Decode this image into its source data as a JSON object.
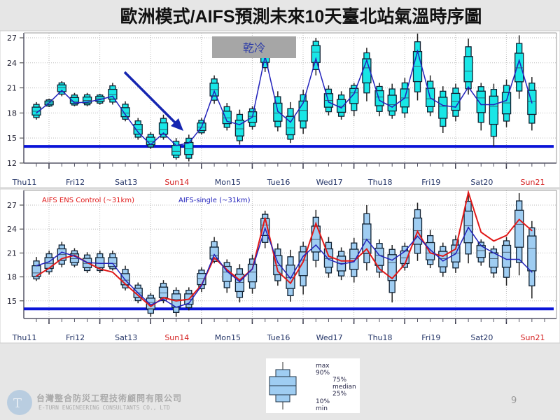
{
  "title": "歐洲模式/AIFS預測未來10天臺北站氣溫時序圖",
  "annotation_label": "乾冷",
  "page_number": "9",
  "logo": {
    "zh": "台灣整合防災工程技術顧問有限公司",
    "en": "E-TURN ENGINEERING CONSULTANTS CO., LTD"
  },
  "legend_box": {
    "labels": [
      "max",
      "90%",
      "75%",
      "median",
      "25%",
      "10%",
      "min"
    ]
  },
  "colors": {
    "top_box": "#19e6e6",
    "bottom_box": "#9fcdf2",
    "threshold": "#0a14d8",
    "ens_control": "#e01818",
    "aifs_single": "#2222bb",
    "sunday_label": "#d42020"
  },
  "chart_data": [
    {
      "type": "boxplot",
      "threshold_line": 14,
      "ylim": [
        12,
        27.5
      ],
      "yticks": [
        12,
        15,
        18,
        21,
        24,
        27
      ],
      "grid": true,
      "days": [
        "Thu11",
        "Fri12",
        "Sat13",
        "Sun14",
        "Mon15",
        "Tue16",
        "Wed17",
        "Thu18",
        "Fri19",
        "Sat20",
        "Sun21"
      ],
      "median": [
        18.2,
        19.2,
        21.0,
        19.4,
        19.5,
        19.7,
        20.2,
        18.0,
        16.0,
        14.6,
        16.0,
        13.4,
        13.7,
        16.3,
        20.8,
        17.4,
        16.1,
        17.6,
        25.0,
        18.0,
        16.2,
        18.3,
        25.3,
        19.5,
        18.8,
        20.4,
        23.4,
        19.9,
        19.0,
        19.8,
        23.6,
        19.7,
        18.8,
        19.4,
        23.0,
        19.8,
        18.8,
        19.2,
        23.4,
        19.4
      ],
      "min": [
        17.2,
        18.7,
        20.0,
        18.8,
        18.8,
        19.0,
        19.0,
        17.0,
        14.8,
        13.7,
        14.8,
        12.4,
        12.2,
        15.4,
        19.1,
        15.9,
        14.2,
        16.0,
        22.9,
        15.8,
        14.4,
        15.5,
        22.5,
        17.7,
        17.2,
        17.6,
        19.4,
        17.6,
        17.3,
        17.4,
        19.5,
        17.6,
        15.6,
        17.0,
        20.2,
        15.9,
        14.0,
        16.3,
        19.7,
        15.9
      ],
      "max": [
        19.3,
        19.7,
        21.8,
        20.4,
        20.4,
        20.3,
        21.6,
        19.4,
        17.4,
        15.7,
        17.8,
        15.0,
        15.4,
        17.4,
        22.5,
        19.2,
        18.4,
        18.8,
        26.5,
        20.6,
        19.3,
        20.8,
        27.0,
        21.3,
        20.6,
        21.6,
        25.8,
        21.6,
        21.5,
        22.2,
        27.5,
        22.5,
        21.2,
        21.5,
        26.9,
        21.6,
        21.5,
        22.0,
        27.3,
        22.3
      ],
      "series": [
        {
          "values": [
            18.0,
            19.2,
            20.7,
            19.2,
            19.3,
            19.6,
            20.0,
            17.8,
            15.7,
            14.2,
            15.6,
            14.1,
            14.4,
            16.3,
            20.6,
            17.0,
            16.6,
            17.5,
            24.8,
            18.2,
            16.9,
            19.2,
            24.5,
            19.3,
            18.6,
            20.3,
            24.3,
            19.5,
            18.7,
            19.8,
            25.4,
            19.8,
            18.9,
            18.7,
            21.1,
            19.0,
            19.0,
            19.5,
            24.3,
            19.2
          ]
        }
      ]
    },
    {
      "type": "boxplot",
      "threshold_line": 14,
      "ylim": [
        13,
        28.5
      ],
      "yticks": [
        15,
        18,
        21,
        24,
        27
      ],
      "grid": true,
      "days": [
        "Thu11",
        "Fri12",
        "Sat13",
        "Sun14",
        "Mon15",
        "Tue16",
        "Wed17",
        "Thu18",
        "Fri19",
        "Sat20",
        "Sun21"
      ],
      "median": [
        18.5,
        19.7,
        20.8,
        20.3,
        19.7,
        19.7,
        19.7,
        17.6,
        16.0,
        14.8,
        16.0,
        15.2,
        15.2,
        17.8,
        20.7,
        18.6,
        17.3,
        18.6,
        24.5,
        19.4,
        17.9,
        20.1,
        22.7,
        20.3,
        19.7,
        20.3,
        22.7,
        20.7,
        19.8,
        20.4,
        23.8,
        21.0,
        20.3,
        21.0,
        24.4,
        21.3,
        20.3,
        21.1,
        24.6,
        21.6
      ],
      "min": [
        17.5,
        18.3,
        19.2,
        19.2,
        18.5,
        18.5,
        18.8,
        16.3,
        14.7,
        13.0,
        14.7,
        13.0,
        13.8,
        16.1,
        19.7,
        16.0,
        14.8,
        15.9,
        21.6,
        16.9,
        14.9,
        15.8,
        19.2,
        17.9,
        17.6,
        17.3,
        18.8,
        17.9,
        14.8,
        18.8,
        20.0,
        19.1,
        18.0,
        18.5,
        19.7,
        19.4,
        17.9,
        16.9,
        18.2,
        15.3
      ],
      "max": [
        20.5,
        21.3,
        22.4,
        21.6,
        21.1,
        21.3,
        21.3,
        19.4,
        17.3,
        16.0,
        17.6,
        16.7,
        16.7,
        19.2,
        23.0,
        20.2,
        19.6,
        20.8,
        26.3,
        22.2,
        21.4,
        22.4,
        26.4,
        23.0,
        21.7,
        22.9,
        27.0,
        22.7,
        22.0,
        22.3,
        27.3,
        23.9,
        22.3,
        23.2,
        28.5,
        22.7,
        21.9,
        23.0,
        28.5,
        25.0
      ],
      "series": [
        {
          "name": "AIFS ENS Control (~31km)",
          "values": [
            18.1,
            19.1,
            20.3,
            20.7,
            19.8,
            19.0,
            18.6,
            17.1,
            15.7,
            14.3,
            15.4,
            15.0,
            15.2,
            17.0,
            20.4,
            18.9,
            17.6,
            19.0,
            25.4,
            18.7,
            17.2,
            19.9,
            24.7,
            20.6,
            20.0,
            20.0,
            21.5,
            19.0,
            17.8,
            19.6,
            23.7,
            21.0,
            20.6,
            21.5,
            28.6,
            23.6,
            22.5,
            23.2,
            25.2,
            23.8
          ]
        },
        {
          "name": "AIFS-single (~31km)",
          "values": [
            19.4,
            19.9,
            21.1,
            20.6,
            19.8,
            19.7,
            19.7,
            17.6,
            16.0,
            14.5,
            15.2,
            14.2,
            14.7,
            16.9,
            20.8,
            18.7,
            17.4,
            19.0,
            24.1,
            19.8,
            17.8,
            20.6,
            22.0,
            20.2,
            19.6,
            19.9,
            22.7,
            20.7,
            20.1,
            21.2,
            23.1,
            21.4,
            20.0,
            20.9,
            24.2,
            21.9,
            21.0,
            20.2,
            20.2,
            18.6
          ]
        }
      ]
    }
  ]
}
